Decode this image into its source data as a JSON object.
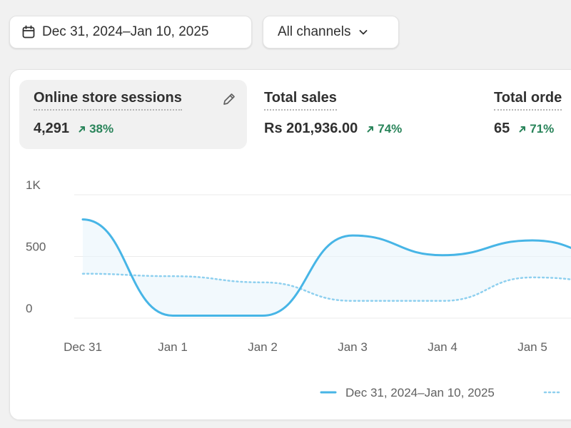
{
  "toolbar": {
    "date_range": "Dec 31, 2024–Jan 10, 2025",
    "channel": "All channels"
  },
  "metrics": [
    {
      "label": "Online store sessions",
      "value": "4,291",
      "delta": "38%"
    },
    {
      "label": "Total sales",
      "value": "Rs 201,936.00",
      "delta": "74%"
    },
    {
      "label": "Total orde",
      "value": "65",
      "delta": "71%"
    }
  ],
  "colors": {
    "primary_line": "#47b5e6",
    "comparison_line": "#8fd0ef",
    "positive": "#29845a",
    "active_metric_bg": "#f1f1f1"
  },
  "chart_data": {
    "type": "line",
    "title": "Online store sessions",
    "ylim": [
      0,
      1000
    ],
    "yticks": [
      0,
      500,
      1000
    ],
    "ytick_labels": [
      "0",
      "500",
      "1K"
    ],
    "categories": [
      "Dec 31",
      "Jan 1",
      "Jan 2",
      "Jan 3",
      "Jan 4",
      "Jan 5"
    ],
    "series": [
      {
        "name": "Dec 31, 2024–Jan 10, 2025",
        "style": "solid",
        "values": [
          800,
          20,
          20,
          670,
          510,
          630
        ]
      },
      {
        "name": "",
        "style": "dotted",
        "values": [
          360,
          340,
          290,
          140,
          140,
          330
        ]
      }
    ],
    "legend": [
      {
        "label": "Dec 31, 2024–Jan 10, 2025",
        "style": "solid"
      },
      {
        "label": "",
        "style": "dotted"
      }
    ]
  }
}
